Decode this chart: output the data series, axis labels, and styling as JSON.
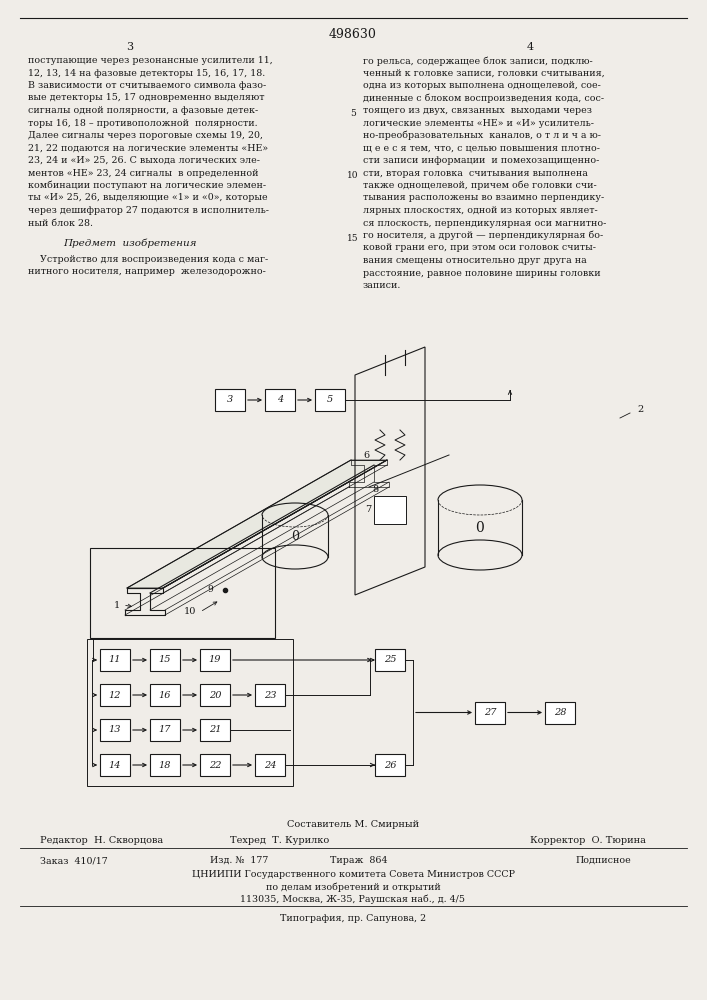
{
  "patent_number": "498630",
  "background_color": "#f0ede8",
  "text_color": "#1a1a1a",
  "page_col3_header": "3",
  "page_col4_header": "4",
  "footer_sostavitel": "Составитель М. Смирный",
  "footer_redaktor": "Редактор  Н. Скворцова",
  "footer_tekhred": "Техред  Т. Курилко",
  "footer_korrektor": "Корректор  О. Тюрина",
  "footer_zakaz": "Заказ  410/17",
  "footer_izd": "Изд. №  177",
  "footer_tirazh": "Тираж  864",
  "footer_podpisnoe": "Подписное",
  "footer_tsniipi": "ЦНИИПИ Государственного комитета Совета Министров СССР",
  "footer_po_delam": "по делам изобретений и открытий",
  "footer_address": "113035, Москва, Ж-35, Раушская наб., д. 4/5",
  "footer_tipografia": "Типография, пр. Сапунова, 2",
  "col3_lines": [
    "поступающие через резонансные усилители 11,",
    "12, 13, 14 на фазовые детекторы 15, 16, 17, 18.",
    "В зависимости от считываемого символа фазо-",
    "вые детекторы 15, 17 одновременно выделяют",
    "сигналы одной полярности, а фазовые детек-",
    "торы 16, 18 – противоположной  полярности.",
    "Далее сигналы через пороговые схемы 19, 20,",
    "21, 22 подаются на логические элементы «НЕ»",
    "23, 24 и «И» 25, 26. С выхода логических эле-",
    "ментов «НЕ» 23, 24 сигналы  в определенной",
    "комбинации поступают на логические элемен-",
    "ты «И» 25, 26, выделяющие «1» и «0», которые",
    "через дешифратор 27 подаются в исполнитель-",
    "ный блок 28."
  ],
  "predmet_header": "Предмет  изобретения",
  "predmet_lines": [
    "    Устройство для воспроизведения кода с маг-",
    "нитного носителя, например  железодорожно-"
  ],
  "col4_lines": [
    "го рельса, содержащее блок записи, подклю-",
    "ченный к головке записи, головки считывания,",
    "одна из которых выполнена однощелевой, сое-",
    "диненные с блоком воспроизведения кода, сос-",
    "тоящего из двух, связанных  выходами через",
    "логические элементы «НЕ» и «И» усилитель-",
    "но-преобразовательных  каналов, о т л и ч а ю-",
    "щ е е с я тем, что, с целью повышения плотно-",
    "сти записи информации  и помехозащищенно-",
    "сти, вторая головка  считывания выполнена",
    "также однощелевой, причем обе головки счи-",
    "тывания расположены во взаимно перпендику-",
    "лярных плоскостях, одной из которых являет-",
    "ся плоскость, перпендикулярная оси магнитно-",
    "го носителя, а другой — перпендикулярная бо-",
    "ковой грани его, при этом оси головок считы-",
    "вания смещены относительно друг друга на",
    "расстояние, равное половине ширины головки",
    "записи."
  ],
  "line_numbers": {
    "4": "5",
    "9": "10",
    "14": "15"
  }
}
